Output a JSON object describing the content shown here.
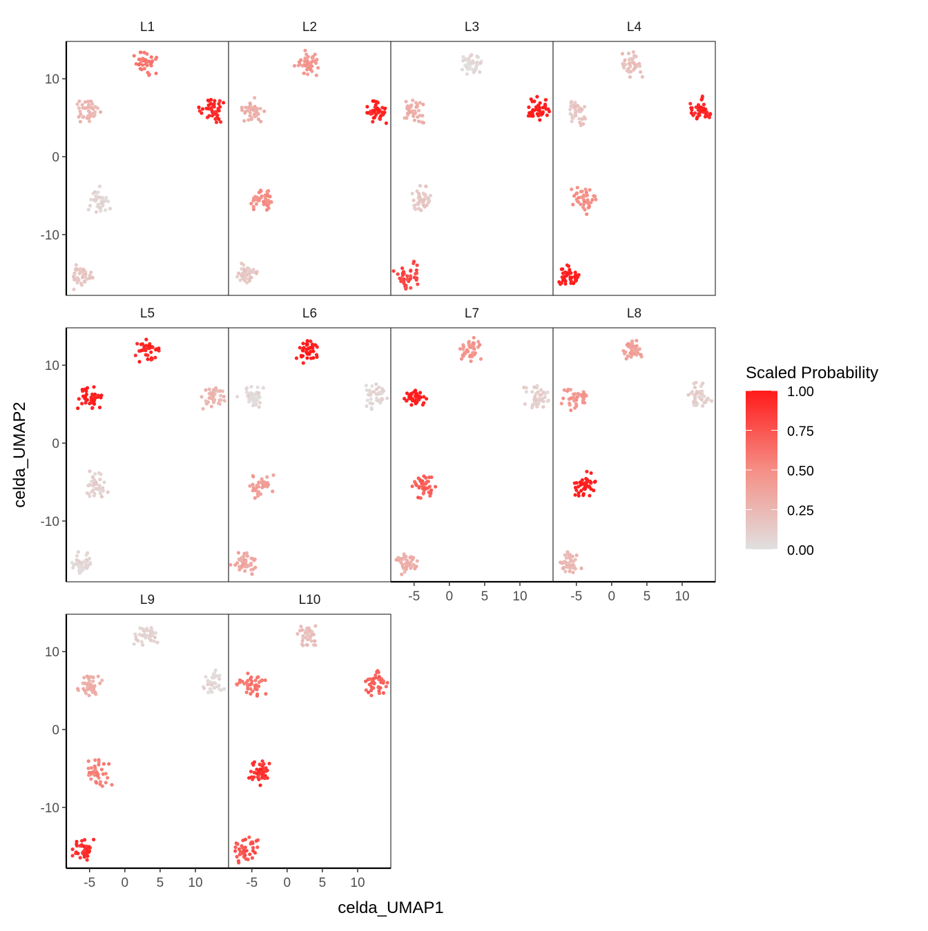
{
  "chart_data": {
    "type": "scatter",
    "title": "",
    "xlabel": "celda_UMAP1",
    "ylabel": "celda_UMAP2",
    "xlim": [
      -8.3,
      14.7
    ],
    "ylim": [
      -17.8,
      14.8
    ],
    "x_ticks": [
      -5,
      0,
      5,
      10
    ],
    "y_ticks": [
      -10,
      0,
      10
    ],
    "tick_labels_x": [
      "-5",
      "0",
      "5",
      "10"
    ],
    "tick_labels_y": [
      "-10",
      "0",
      "10"
    ],
    "grid": false,
    "legend": {
      "title": "Scaled Probability",
      "placement": "right",
      "low_color": "#E0E0E0",
      "high_color": "#FF1A1A",
      "breaks": [
        1.0,
        0.75,
        0.5,
        0.25,
        0.0
      ],
      "labels": [
        "1.00",
        "0.75",
        "0.50",
        "0.25",
        "0.00"
      ]
    },
    "clusters": [
      {
        "name": "top",
        "x": 3.0,
        "y": 12.0
      },
      {
        "name": "left",
        "x": -5.0,
        "y": 5.8
      },
      {
        "name": "right",
        "x": 12.5,
        "y": 6.0
      },
      {
        "name": "middle",
        "x": -3.8,
        "y": -5.5
      },
      {
        "name": "bottom",
        "x": -6.0,
        "y": -15.3
      }
    ],
    "points_per_cluster": 40,
    "facets": [
      {
        "label": "L1",
        "values": [
          0.6,
          0.25,
          0.95,
          0.05,
          0.15
        ]
      },
      {
        "label": "L2",
        "values": [
          0.45,
          0.3,
          0.95,
          0.5,
          0.15
        ]
      },
      {
        "label": "L3",
        "values": [
          0.05,
          0.3,
          1.0,
          0.15,
          0.8
        ]
      },
      {
        "label": "L4",
        "values": [
          0.2,
          0.15,
          0.95,
          0.5,
          1.0
        ]
      },
      {
        "label": "L5",
        "values": [
          0.95,
          1.0,
          0.25,
          0.1,
          0.05
        ]
      },
      {
        "label": "L6",
        "values": [
          1.0,
          0.05,
          0.05,
          0.4,
          0.35
        ]
      },
      {
        "label": "L7",
        "values": [
          0.45,
          1.0,
          0.1,
          0.7,
          0.3
        ]
      },
      {
        "label": "L8",
        "values": [
          0.4,
          0.45,
          0.1,
          1.0,
          0.25
        ]
      },
      {
        "label": "L9",
        "values": [
          0.1,
          0.3,
          0.05,
          0.55,
          0.9
        ]
      },
      {
        "label": "L10",
        "values": [
          0.2,
          0.6,
          0.7,
          0.9,
          0.75
        ]
      }
    ]
  }
}
